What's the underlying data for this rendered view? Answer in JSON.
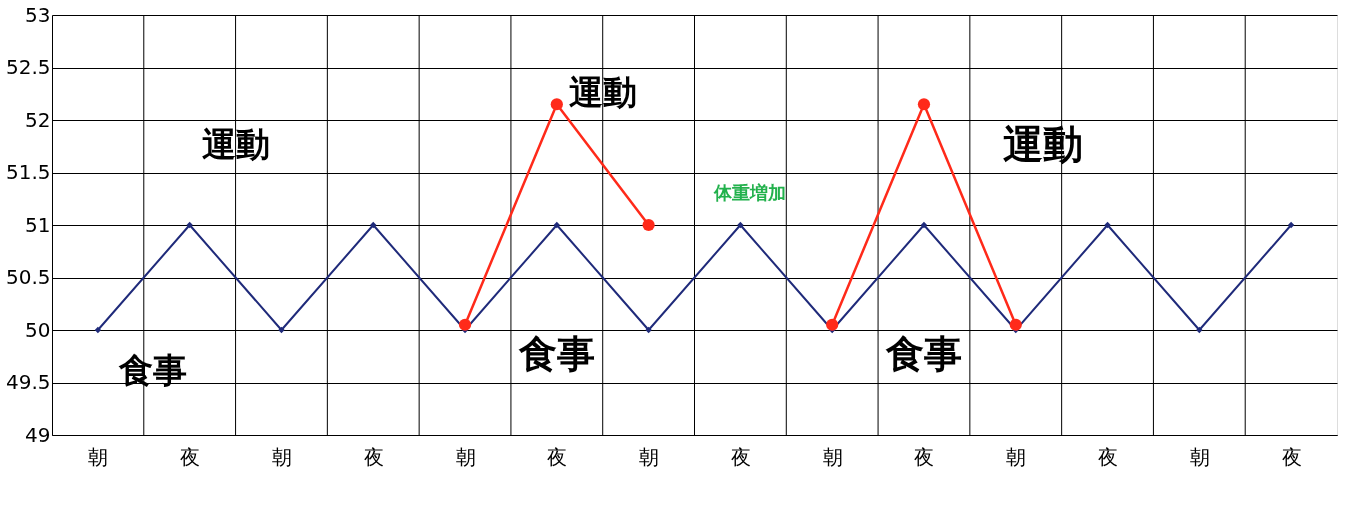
{
  "chart_data": {
    "type": "line",
    "categories": [
      "朝",
      "夜",
      "朝",
      "夜",
      "朝",
      "夜",
      "朝",
      "夜",
      "朝",
      "夜",
      "朝",
      "夜",
      "朝",
      "夜"
    ],
    "series": [
      {
        "color": "#1f2a7a",
        "marker": "diamond",
        "values": [
          50,
          51,
          50,
          51,
          50,
          51,
          50,
          51,
          50,
          51,
          50,
          51,
          50,
          51
        ]
      },
      {
        "color": "#ff2a1a",
        "marker": "circle",
        "values": [
          null,
          null,
          null,
          null,
          50.05,
          52.15,
          51.0,
          null,
          50.05,
          52.15,
          50.05,
          null,
          null,
          null
        ]
      }
    ],
    "ylim": [
      49,
      53
    ],
    "yticks": [
      49,
      49.5,
      50,
      50.5,
      51,
      51.5,
      52,
      52.5,
      53
    ],
    "grid": true,
    "annotations": [
      "運動",
      "運動",
      "運動",
      "食事",
      "食事",
      "食事",
      "体重増加"
    ]
  }
}
